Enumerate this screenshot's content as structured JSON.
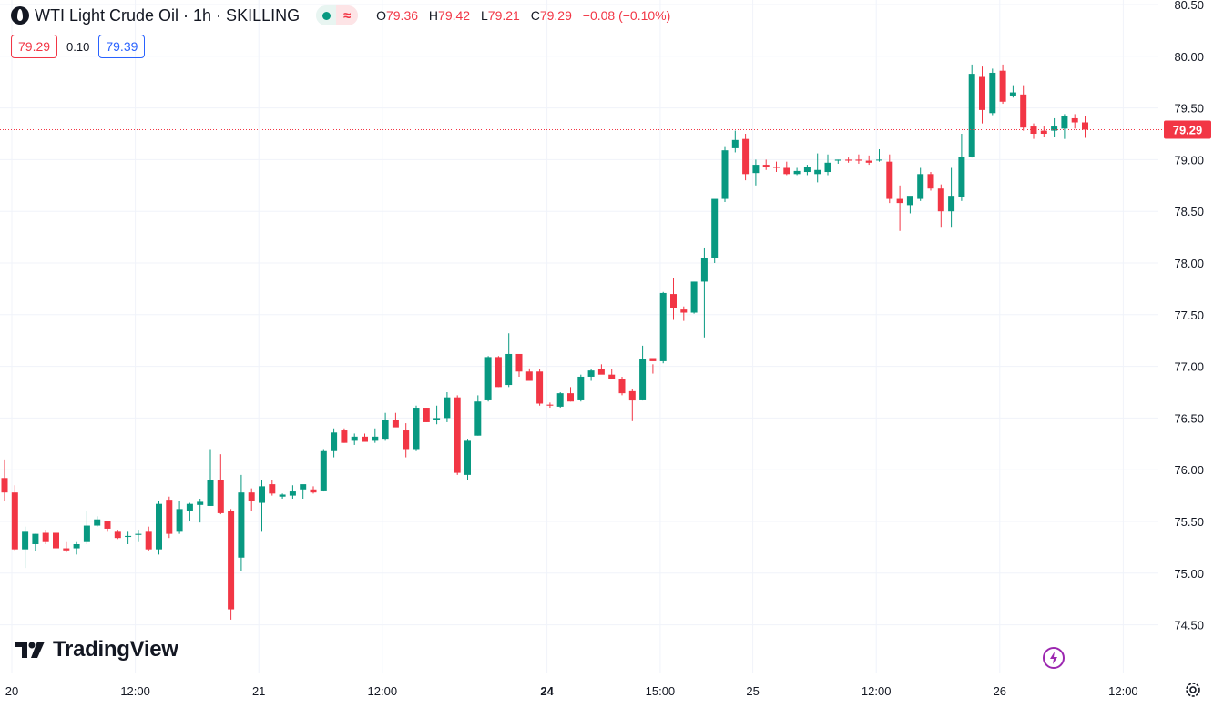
{
  "header": {
    "title": "WTI Light Crude Oil · 1h · SKILLING",
    "open_label": "O",
    "open": "79.36",
    "high_label": "H",
    "high": "79.42",
    "low_label": "L",
    "low": "79.21",
    "close_label": "C",
    "close": "79.29",
    "change": "−0.08 (−0.10%)",
    "bid": "79.29",
    "spread": "0.10",
    "ask": "79.39"
  },
  "brand": {
    "name": "TradingView"
  },
  "icons": {
    "symbol": "oil-drop-icon",
    "status": "market-open-dot-icon",
    "wave": "wave-icon",
    "bolt": "lightning-icon",
    "settings": "gear-icon"
  },
  "colors": {
    "up": "#089981",
    "down": "#f23645",
    "grid": "#f0f3fa",
    "text": "#131722"
  },
  "chart_data": {
    "type": "candlestick",
    "title": "WTI Light Crude Oil · 1h · SKILLING",
    "ylim": [
      74.25,
      80.55
    ],
    "y_ticks": [
      "80.50",
      "80.00",
      "79.50",
      "79.00",
      "78.50",
      "78.00",
      "77.50",
      "77.00",
      "76.50",
      "76.00",
      "75.50",
      "75.00",
      "74.50"
    ],
    "x_ticks": [
      {
        "label": "20",
        "bar": 0,
        "bold": false
      },
      {
        "label": "12:00",
        "bar": 12,
        "bold": false
      },
      {
        "label": "21",
        "bar": 24,
        "bold": false
      },
      {
        "label": "12:00",
        "bar": 36,
        "bold": false
      },
      {
        "label": "24",
        "bar": 52,
        "bold": true
      },
      {
        "label": "15:00",
        "bar": 63,
        "bold": false
      },
      {
        "label": "25",
        "bar": 72,
        "bold": false
      },
      {
        "label": "12:00",
        "bar": 84,
        "bold": false
      },
      {
        "label": "26",
        "bar": 96,
        "bold": false
      },
      {
        "label": "12:00",
        "bar": 108,
        "bold": false
      }
    ],
    "last_price": "79.29",
    "last_value": 79.29,
    "candles": [
      [
        75.92,
        76.1,
        75.7,
        75.78
      ],
      [
        75.78,
        75.85,
        75.22,
        75.23
      ],
      [
        75.23,
        75.45,
        75.05,
        75.4
      ],
      [
        75.28,
        75.38,
        75.21,
        75.38
      ],
      [
        75.39,
        75.42,
        75.28,
        75.3
      ],
      [
        75.39,
        75.41,
        75.2,
        75.24
      ],
      [
        75.24,
        75.3,
        75.2,
        75.22
      ],
      [
        75.24,
        75.3,
        75.18,
        75.28
      ],
      [
        75.3,
        75.6,
        75.28,
        75.46
      ],
      [
        75.46,
        75.55,
        75.45,
        75.52
      ],
      [
        75.5,
        75.5,
        75.4,
        75.43
      ],
      [
        75.4,
        75.42,
        75.33,
        75.34
      ],
      [
        75.35,
        75.4,
        75.28,
        75.36
      ],
      [
        75.37,
        75.42,
        75.3,
        75.38
      ],
      [
        75.4,
        75.45,
        75.21,
        75.23
      ],
      [
        75.23,
        75.7,
        75.18,
        75.67
      ],
      [
        75.71,
        75.74,
        75.34,
        75.38
      ],
      [
        75.4,
        75.7,
        75.38,
        75.62
      ],
      [
        75.6,
        75.68,
        75.5,
        75.67
      ],
      [
        75.66,
        75.72,
        75.49,
        75.69
      ],
      [
        75.65,
        76.2,
        75.65,
        75.9
      ],
      [
        75.9,
        76.15,
        75.57,
        75.58
      ],
      [
        75.6,
        75.62,
        74.55,
        74.65
      ],
      [
        75.15,
        75.95,
        75.02,
        75.78
      ],
      [
        75.78,
        75.82,
        75.6,
        75.7
      ],
      [
        75.68,
        75.9,
        75.4,
        75.84
      ],
      [
        75.86,
        75.9,
        75.75,
        75.77
      ],
      [
        75.74,
        75.77,
        75.72,
        75.76
      ],
      [
        75.75,
        75.85,
        75.72,
        75.79
      ],
      [
        75.81,
        75.82,
        75.72,
        75.86
      ],
      [
        75.81,
        75.84,
        75.77,
        75.78
      ],
      [
        75.8,
        76.2,
        75.79,
        76.18
      ],
      [
        76.18,
        76.4,
        76.12,
        76.36
      ],
      [
        76.38,
        76.4,
        76.26,
        76.26
      ],
      [
        76.28,
        76.35,
        76.24,
        76.32
      ],
      [
        76.32,
        76.35,
        76.28,
        76.27
      ],
      [
        76.28,
        76.4,
        76.26,
        76.32
      ],
      [
        76.3,
        76.55,
        76.28,
        76.48
      ],
      [
        76.48,
        76.55,
        76.42,
        76.41
      ],
      [
        76.38,
        76.45,
        76.12,
        76.2
      ],
      [
        76.2,
        76.62,
        76.18,
        76.6
      ],
      [
        76.6,
        76.6,
        76.46,
        76.46
      ],
      [
        76.48,
        76.62,
        76.44,
        76.5
      ],
      [
        76.5,
        76.75,
        76.46,
        76.7
      ],
      [
        76.7,
        76.72,
        75.95,
        75.97
      ],
      [
        75.95,
        76.3,
        75.9,
        76.28
      ],
      [
        76.33,
        76.72,
        76.33,
        76.66
      ],
      [
        76.68,
        77.1,
        76.66,
        77.09
      ],
      [
        77.09,
        77.1,
        76.8,
        76.8
      ],
      [
        76.82,
        77.32,
        76.8,
        77.12
      ],
      [
        77.12,
        77.12,
        76.9,
        76.95
      ],
      [
        76.95,
        76.98,
        76.86,
        76.86
      ],
      [
        76.95,
        76.97,
        76.62,
        76.64
      ],
      [
        76.63,
        76.65,
        76.6,
        76.62
      ],
      [
        76.61,
        76.75,
        76.6,
        76.74
      ],
      [
        76.74,
        76.8,
        76.66,
        76.66
      ],
      [
        76.68,
        76.92,
        76.66,
        76.9
      ],
      [
        76.9,
        76.97,
        76.86,
        76.96
      ],
      [
        76.97,
        77.02,
        76.93,
        76.92
      ],
      [
        76.92,
        76.97,
        76.88,
        76.88
      ],
      [
        76.88,
        76.9,
        76.72,
        76.74
      ],
      [
        76.76,
        76.78,
        76.47,
        76.67
      ],
      [
        76.68,
        77.2,
        76.67,
        77.07
      ],
      [
        77.08,
        77.02,
        76.93,
        77.05
      ],
      [
        77.05,
        77.72,
        77.03,
        77.71
      ],
      [
        77.7,
        77.85,
        77.45,
        77.56
      ],
      [
        77.55,
        77.58,
        77.44,
        77.52
      ],
      [
        77.52,
        77.82,
        77.51,
        77.82
      ],
      [
        77.82,
        78.15,
        77.28,
        78.05
      ],
      [
        78.05,
        78.6,
        78.0,
        78.62
      ],
      [
        78.62,
        79.13,
        78.59,
        79.09
      ],
      [
        79.11,
        79.28,
        79.07,
        79.19
      ],
      [
        79.2,
        79.25,
        78.8,
        78.86
      ],
      [
        78.87,
        79.0,
        78.75,
        78.95
      ],
      [
        78.95,
        79.0,
        78.9,
        78.93
      ],
      [
        78.93,
        78.98,
        78.88,
        78.92
      ],
      [
        78.92,
        78.98,
        78.85,
        78.86
      ],
      [
        78.86,
        78.92,
        78.85,
        78.89
      ],
      [
        78.88,
        78.95,
        78.85,
        78.93
      ],
      [
        78.86,
        79.06,
        78.78,
        78.9
      ],
      [
        78.88,
        79.05,
        78.85,
        78.97
      ],
      [
        78.99,
        79.0,
        78.96,
        79.0
      ],
      [
        79.0,
        79.02,
        78.97,
        78.99
      ],
      [
        79.0,
        79.05,
        78.96,
        78.99
      ],
      [
        78.99,
        79.04,
        78.95,
        78.97
      ],
      [
        79.0,
        79.1,
        78.98,
        79.0
      ],
      [
        78.98,
        79.05,
        78.58,
        78.62
      ],
      [
        78.62,
        78.75,
        78.31,
        78.58
      ],
      [
        78.56,
        78.64,
        78.48,
        78.65
      ],
      [
        78.62,
        78.92,
        78.6,
        78.86
      ],
      [
        78.86,
        78.88,
        78.7,
        78.72
      ],
      [
        78.72,
        78.76,
        78.35,
        78.5
      ],
      [
        78.5,
        78.92,
        78.35,
        78.65
      ],
      [
        78.64,
        79.25,
        78.6,
        79.03
      ],
      [
        79.03,
        79.92,
        79.02,
        79.83
      ],
      [
        79.8,
        79.9,
        79.35,
        79.48
      ],
      [
        79.45,
        79.88,
        79.43,
        79.84
      ],
      [
        79.86,
        79.92,
        79.54,
        79.56
      ],
      [
        79.62,
        79.72,
        79.6,
        79.65
      ],
      [
        79.63,
        79.72,
        79.28,
        79.31
      ],
      [
        79.32,
        79.35,
        79.2,
        79.25
      ],
      [
        79.28,
        79.32,
        79.22,
        79.25
      ],
      [
        79.28,
        79.4,
        79.22,
        79.32
      ],
      [
        79.3,
        79.44,
        79.2,
        79.42
      ],
      [
        79.4,
        79.44,
        79.3,
        79.36
      ],
      [
        79.36,
        79.42,
        79.21,
        79.29
      ]
    ]
  }
}
